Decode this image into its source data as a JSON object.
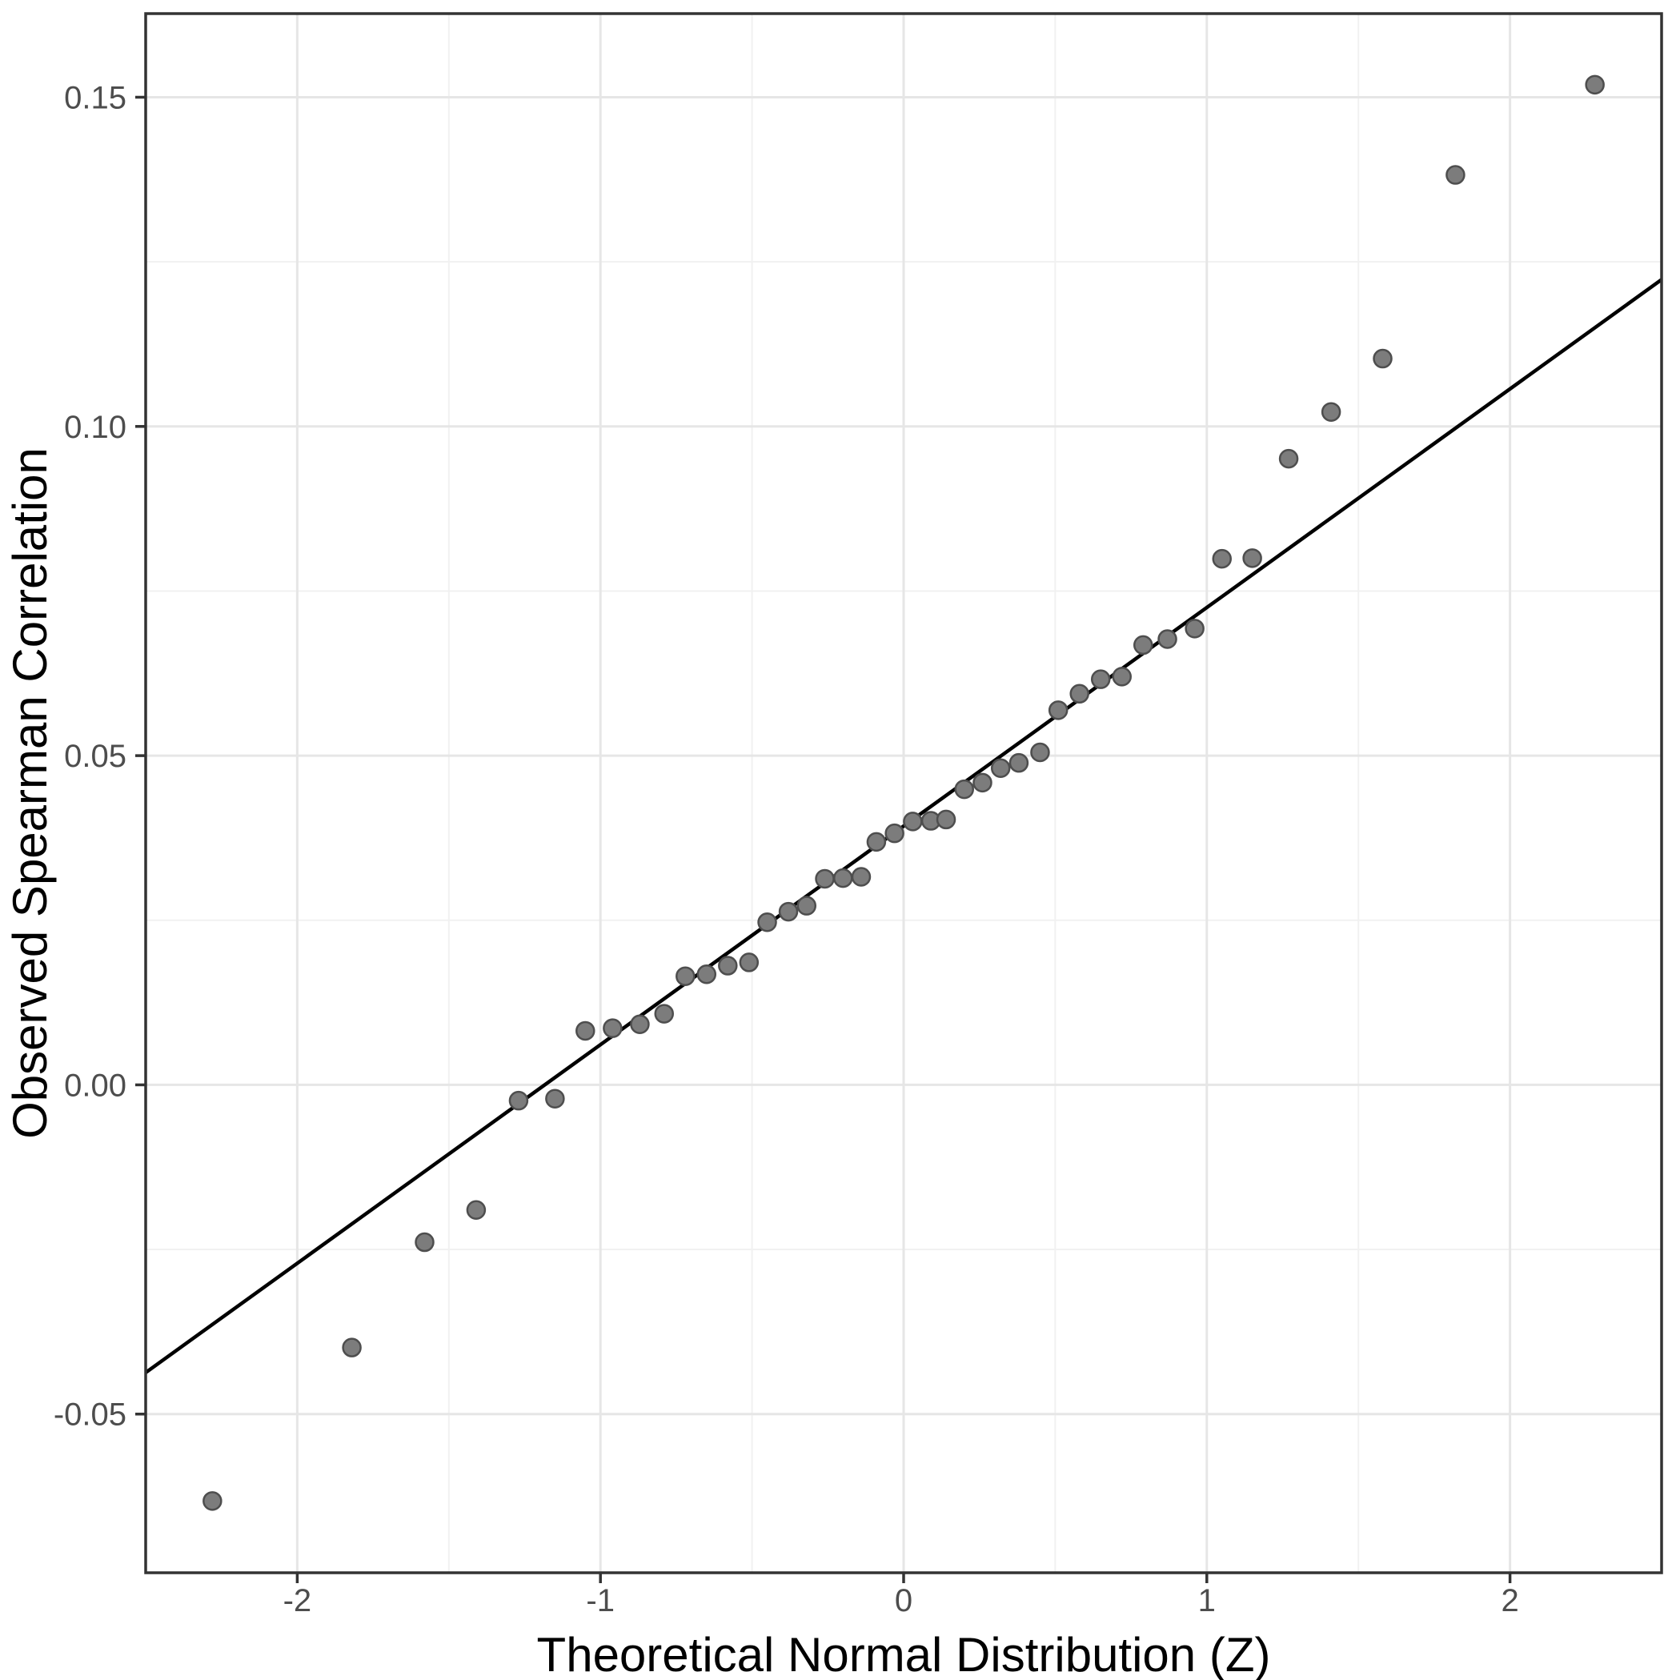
{
  "chart_data": {
    "type": "scatter",
    "title": "",
    "xlabel": "Theoretical Normal Distribution (Z)",
    "ylabel": "Observed Spearman Correlation",
    "xlim": [
      -2.5,
      2.5
    ],
    "ylim": [
      -0.0741,
      0.1627
    ],
    "x_ticks": [
      -2,
      -1,
      0,
      1,
      2
    ],
    "x_tick_labels": [
      "-2",
      "-1",
      "0",
      "1",
      "2"
    ],
    "y_ticks": [
      0.15,
      0.1,
      0.05,
      0.0,
      -0.05
    ],
    "y_tick_labels": [
      "0.15",
      "0.10",
      "0.05",
      "0.00",
      "-0.05"
    ],
    "x_minor_gridlines": [
      -1.5,
      -0.5,
      0.5,
      1.5
    ],
    "y_minor_gridlines": [
      0.125,
      0.075,
      0.025,
      -0.025
    ],
    "grid": "on",
    "legend": "none",
    "points": [
      {
        "x": -2.28,
        "y": -0.0632
      },
      {
        "x": -1.82,
        "y": -0.0399
      },
      {
        "x": -1.58,
        "y": -0.0239
      },
      {
        "x": -1.41,
        "y": -0.019
      },
      {
        "x": -1.27,
        "y": -0.0024
      },
      {
        "x": -1.15,
        "y": -0.0021
      },
      {
        "x": -1.05,
        "y": 0.0082
      },
      {
        "x": -0.96,
        "y": 0.0086
      },
      {
        "x": -0.87,
        "y": 0.0092
      },
      {
        "x": -0.79,
        "y": 0.0108
      },
      {
        "x": -0.72,
        "y": 0.0165
      },
      {
        "x": -0.65,
        "y": 0.0168
      },
      {
        "x": -0.58,
        "y": 0.0181
      },
      {
        "x": -0.51,
        "y": 0.0186
      },
      {
        "x": -0.45,
        "y": 0.0247
      },
      {
        "x": -0.38,
        "y": 0.0263
      },
      {
        "x": -0.32,
        "y": 0.0272
      },
      {
        "x": -0.26,
        "y": 0.0313
      },
      {
        "x": -0.2,
        "y": 0.0314
      },
      {
        "x": -0.14,
        "y": 0.0316
      },
      {
        "x": -0.09,
        "y": 0.0369
      },
      {
        "x": -0.03,
        "y": 0.0382
      },
      {
        "x": 0.03,
        "y": 0.04
      },
      {
        "x": 0.09,
        "y": 0.0401
      },
      {
        "x": 0.14,
        "y": 0.0403
      },
      {
        "x": 0.2,
        "y": 0.0449
      },
      {
        "x": 0.26,
        "y": 0.0459
      },
      {
        "x": 0.32,
        "y": 0.0481
      },
      {
        "x": 0.38,
        "y": 0.0489
      },
      {
        "x": 0.45,
        "y": 0.0505
      },
      {
        "x": 0.51,
        "y": 0.0569
      },
      {
        "x": 0.58,
        "y": 0.0594
      },
      {
        "x": 0.65,
        "y": 0.0616
      },
      {
        "x": 0.72,
        "y": 0.062
      },
      {
        "x": 0.79,
        "y": 0.0668
      },
      {
        "x": 0.87,
        "y": 0.0677
      },
      {
        "x": 0.96,
        "y": 0.0693
      },
      {
        "x": 1.05,
        "y": 0.0799
      },
      {
        "x": 1.15,
        "y": 0.08
      },
      {
        "x": 1.27,
        "y": 0.0951
      },
      {
        "x": 1.41,
        "y": 0.1022
      },
      {
        "x": 1.58,
        "y": 0.1103
      },
      {
        "x": 1.82,
        "y": 0.1382
      },
      {
        "x": 2.28,
        "y": 0.1519
      }
    ],
    "reference_line": {
      "intercept": 0.0393,
      "slope": 0.0332,
      "x_start": -2.5,
      "x_end": 2.5
    },
    "colors": {
      "point_fill": "#7c7c7c",
      "point_stroke": "#4e4e4e",
      "line": "#000000",
      "grid_major": "#e6e6e6",
      "grid_minor": "#f1f1f1",
      "panel_border": "#333333",
      "tick_mark": "#333333",
      "tick_label": "#4d4d4d",
      "axis_title": "#000000",
      "background": "#ffffff"
    }
  }
}
